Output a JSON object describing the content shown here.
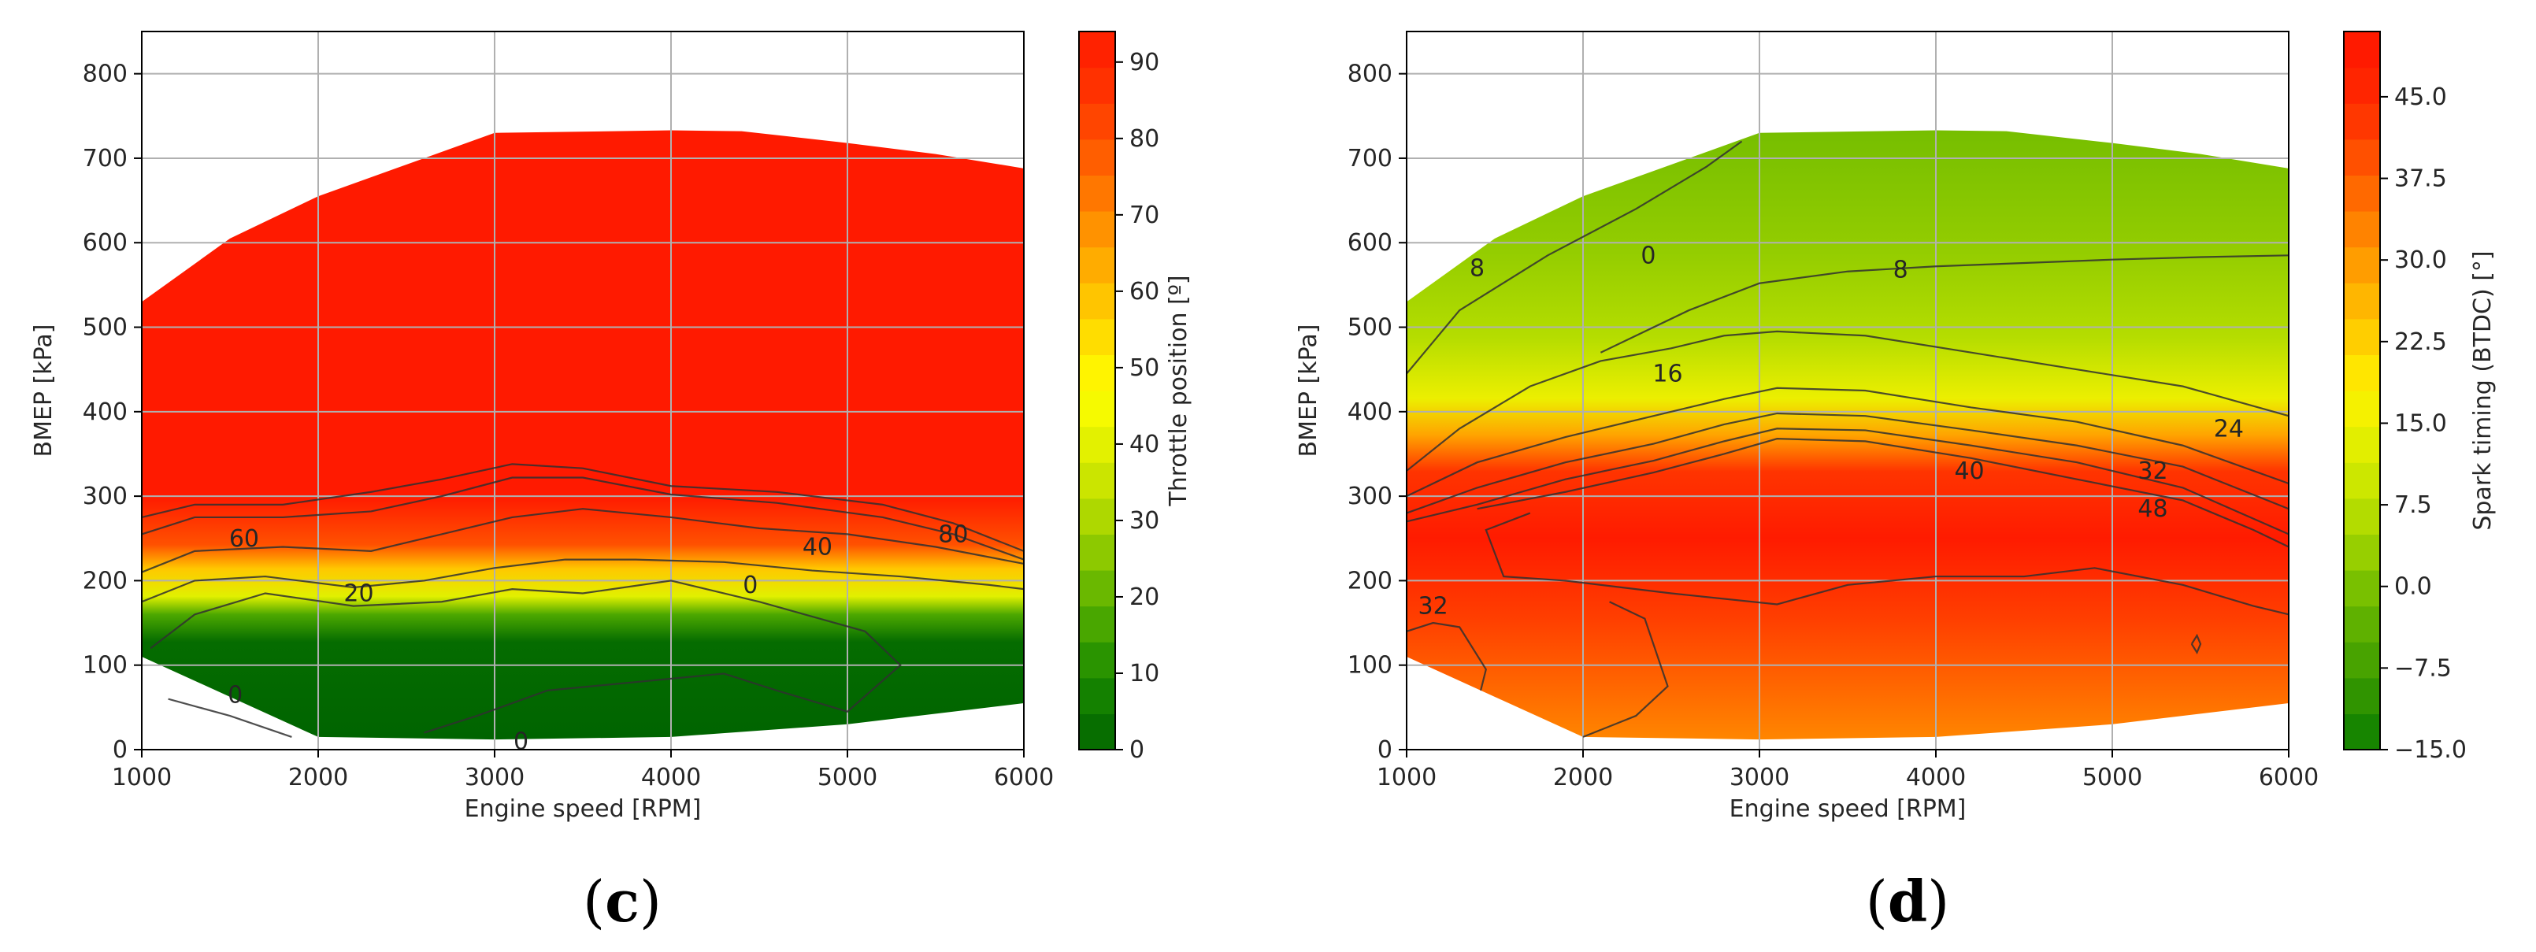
{
  "chart_data": [
    {
      "type": "heatmap",
      "panel": "c",
      "panel_label_prefix": "(",
      "panel_label_suffix": ")",
      "xlabel": "Engine speed [RPM]",
      "ylabel": "BMEP [kPa]",
      "xlim": [
        1000,
        6000
      ],
      "ylim": [
        0,
        850
      ],
      "xticks": [
        1000,
        2000,
        3000,
        4000,
        5000,
        6000
      ],
      "yticks": [
        0,
        100,
        200,
        300,
        400,
        500,
        600,
        700,
        800
      ],
      "grid": true,
      "colorbar": {
        "label": "Throttle position [º]",
        "range": [
          0,
          94
        ],
        "ticks": [
          "0",
          "10",
          "20",
          "30",
          "40",
          "50",
          "60",
          "70",
          "80",
          "90"
        ],
        "tick_values": [
          0,
          10,
          20,
          30,
          40,
          50,
          60,
          70,
          80,
          90
        ],
        "colors": [
          "#006400",
          "#1a8a00",
          "#58b000",
          "#9fd100",
          "#d9ec00",
          "#ffff00",
          "#ffd200",
          "#ff9f00",
          "#ff6a00",
          "#ff3800",
          "#ff1a00"
        ]
      },
      "envelope": [
        [
          1000,
          530
        ],
        [
          1500,
          605
        ],
        [
          2000,
          655
        ],
        [
          2600,
          700
        ],
        [
          3000,
          730
        ],
        [
          4000,
          733
        ],
        [
          4400,
          732
        ],
        [
          5000,
          718
        ],
        [
          5500,
          705
        ],
        [
          6000,
          688
        ],
        [
          6000,
          55
        ],
        [
          5000,
          30
        ],
        [
          4000,
          15
        ],
        [
          3000,
          12
        ],
        [
          2000,
          15
        ],
        [
          1000,
          110
        ]
      ],
      "contour_lines": [
        {
          "level": 0,
          "points": [
            [
              1050,
              120
            ],
            [
              1300,
              160
            ],
            [
              1700,
              185
            ],
            [
              2200,
              170
            ],
            [
              2700,
              175
            ],
            [
              3100,
              190
            ],
            [
              3500,
              185
            ],
            [
              4000,
              200
            ],
            [
              4500,
              175
            ],
            [
              5100,
              140
            ],
            [
              5300,
              100
            ],
            [
              5000,
              45
            ],
            [
              4600,
              70
            ],
            [
              4300,
              90
            ],
            [
              3800,
              80
            ],
            [
              3300,
              70
            ],
            [
              2900,
              40
            ],
            [
              2600,
              20
            ]
          ]
        },
        {
          "level": 0,
          "points": [
            [
              1150,
              60
            ],
            [
              1500,
              40
            ],
            [
              1850,
              15
            ]
          ]
        },
        {
          "level": 20,
          "points": [
            [
              1000,
              175
            ],
            [
              1300,
              200
            ],
            [
              1700,
              205
            ],
            [
              2200,
              192
            ],
            [
              2600,
              200
            ],
            [
              3000,
              215
            ],
            [
              3400,
              225
            ],
            [
              3800,
              225
            ],
            [
              4300,
              222
            ],
            [
              4800,
              212
            ],
            [
              5300,
              205
            ],
            [
              5800,
              195
            ],
            [
              6000,
              190
            ]
          ]
        },
        {
          "level": 40,
          "points": [
            [
              1000,
              210
            ],
            [
              1300,
              235
            ],
            [
              1800,
              240
            ],
            [
              2300,
              235
            ],
            [
              2700,
              255
            ],
            [
              3100,
              275
            ],
            [
              3500,
              285
            ],
            [
              4000,
              275
            ],
            [
              4500,
              262
            ],
            [
              5000,
              255
            ],
            [
              5500,
              240
            ],
            [
              6000,
              220
            ]
          ]
        },
        {
          "level": 60,
          "points": [
            [
              1000,
              255
            ],
            [
              1300,
              275
            ],
            [
              1800,
              275
            ],
            [
              2300,
              282
            ],
            [
              2700,
              300
            ],
            [
              3100,
              322
            ],
            [
              3500,
              322
            ],
            [
              4000,
              302
            ],
            [
              4600,
              292
            ],
            [
              5200,
              275
            ],
            [
              5600,
              255
            ],
            [
              6000,
              225
            ]
          ]
        },
        {
          "level": 80,
          "points": [
            [
              1000,
              275
            ],
            [
              1300,
              290
            ],
            [
              1800,
              290
            ],
            [
              2300,
              305
            ],
            [
              2700,
              320
            ],
            [
              3100,
              338
            ],
            [
              3500,
              333
            ],
            [
              4000,
              312
            ],
            [
              4600,
              305
            ],
            [
              5200,
              290
            ],
            [
              5600,
              268
            ],
            [
              6000,
              235
            ]
          ]
        }
      ],
      "contour_labels": [
        {
          "text": "60",
          "x": 1580,
          "y": 250
        },
        {
          "text": "20",
          "x": 2230,
          "y": 185
        },
        {
          "text": "40",
          "x": 4830,
          "y": 240
        },
        {
          "text": "80",
          "x": 5600,
          "y": 255
        },
        {
          "text": "0",
          "x": 4450,
          "y": 195
        },
        {
          "text": "0",
          "x": 1530,
          "y": 65
        },
        {
          "text": "0",
          "x": 3150,
          "y": 10
        }
      ]
    },
    {
      "type": "heatmap",
      "panel": "d",
      "panel_label_prefix": "(",
      "panel_label_suffix": ")",
      "xlabel": "Engine speed [RPM]",
      "ylabel": "BMEP [kPa]",
      "xlim": [
        1000,
        6000
      ],
      "ylim": [
        0,
        850
      ],
      "xticks": [
        1000,
        2000,
        3000,
        4000,
        5000,
        6000
      ],
      "yticks": [
        0,
        100,
        200,
        300,
        400,
        500,
        600,
        700,
        800
      ],
      "grid": true,
      "colorbar": {
        "label": "Spark timing (BTDC) [°]",
        "range": [
          -15,
          51
        ],
        "ticks": [
          "−15.0",
          "−7.5",
          "0.0",
          "7.5",
          "15.0",
          "22.5",
          "30.0",
          "37.5",
          "45.0"
        ],
        "tick_values": [
          -15,
          -7.5,
          0,
          7.5,
          15,
          22.5,
          30,
          37.5,
          45
        ],
        "colors": [
          "#0a7d00",
          "#3c9c00",
          "#6ab800",
          "#a6d600",
          "#d8ec00",
          "#fff200",
          "#ffc200",
          "#ff9000",
          "#ff5c00",
          "#ff2a00",
          "#ff1500"
        ]
      },
      "envelope": [
        [
          1000,
          530
        ],
        [
          1500,
          605
        ],
        [
          2000,
          655
        ],
        [
          2600,
          700
        ],
        [
          3000,
          730
        ],
        [
          4000,
          733
        ],
        [
          4400,
          732
        ],
        [
          5000,
          718
        ],
        [
          5500,
          705
        ],
        [
          6000,
          688
        ],
        [
          6000,
          55
        ],
        [
          5000,
          30
        ],
        [
          4000,
          15
        ],
        [
          3000,
          12
        ],
        [
          2000,
          15
        ],
        [
          1000,
          110
        ]
      ],
      "contour_lines": [
        {
          "level": 0,
          "points": [
            [
              1000,
              445
            ],
            [
              1300,
              520
            ],
            [
              1800,
              585
            ],
            [
              2300,
              640
            ],
            [
              2700,
              690
            ],
            [
              2900,
              720
            ]
          ]
        },
        {
          "level": 8,
          "points": [
            [
              2100,
              470
            ],
            [
              2600,
              520
            ],
            [
              3000,
              552
            ],
            [
              3500,
              566
            ],
            [
              4000,
              572
            ],
            [
              4500,
              576
            ],
            [
              5000,
              580
            ],
            [
              5500,
              583
            ],
            [
              6000,
              585
            ]
          ]
        },
        {
          "level": 16,
          "points": [
            [
              1000,
              330
            ],
            [
              1300,
              380
            ],
            [
              1700,
              430
            ],
            [
              2100,
              460
            ],
            [
              2500,
              475
            ],
            [
              2800,
              490
            ],
            [
              3100,
              495
            ],
            [
              3600,
              490
            ],
            [
              4200,
              470
            ],
            [
              4800,
              450
            ],
            [
              5400,
              430
            ],
            [
              6000,
              395
            ]
          ]
        },
        {
          "level": 24,
          "points": [
            [
              1000,
              300
            ],
            [
              1400,
              340
            ],
            [
              1900,
              370
            ],
            [
              2400,
              395
            ],
            [
              2800,
              415
            ],
            [
              3100,
              428
            ],
            [
              3600,
              425
            ],
            [
              4200,
              405
            ],
            [
              4800,
              388
            ],
            [
              5400,
              360
            ],
            [
              6000,
              315
            ]
          ]
        },
        {
          "level": 32,
          "points": [
            [
              1000,
              280
            ],
            [
              1400,
              310
            ],
            [
              1900,
              340
            ],
            [
              2400,
              362
            ],
            [
              2800,
              385
            ],
            [
              3100,
              398
            ],
            [
              3600,
              395
            ],
            [
              4200,
              378
            ],
            [
              4800,
              360
            ],
            [
              5400,
              335
            ],
            [
              6000,
              285
            ]
          ]
        },
        {
          "level": 40,
          "points": [
            [
              1000,
              270
            ],
            [
              1400,
              290
            ],
            [
              1900,
              320
            ],
            [
              2400,
              342
            ],
            [
              2800,
              365
            ],
            [
              3100,
              380
            ],
            [
              3600,
              378
            ],
            [
              4200,
              360
            ],
            [
              4800,
              340
            ],
            [
              5400,
              310
            ],
            [
              6000,
              255
            ]
          ]
        },
        {
          "level": 48,
          "points": [
            [
              1400,
              285
            ],
            [
              1900,
              305
            ],
            [
              2400,
              328
            ],
            [
              2800,
              350
            ],
            [
              3100,
              368
            ],
            [
              3600,
              365
            ],
            [
              4200,
              345
            ],
            [
              4800,
              320
            ],
            [
              5400,
              295
            ],
            [
              5800,
              260
            ],
            [
              6000,
              240
            ]
          ]
        },
        {
          "level": 48,
          "points": [
            [
              1700,
              280
            ],
            [
              1450,
              260
            ],
            [
              1550,
              205
            ],
            [
              1900,
              200
            ],
            [
              2500,
              185
            ],
            [
              3100,
              172
            ],
            [
              3500,
              195
            ],
            [
              4000,
              205
            ],
            [
              4500,
              205
            ],
            [
              4900,
              215
            ],
            [
              5400,
              195
            ],
            [
              5800,
              170
            ],
            [
              6000,
              160
            ]
          ]
        },
        {
          "level": 32,
          "points": [
            [
              1000,
              140
            ],
            [
              1150,
              150
            ],
            [
              1300,
              145
            ],
            [
              1450,
              95
            ],
            [
              1420,
              70
            ]
          ]
        },
        {
          "level": 32,
          "points": [
            [
              2000,
              15
            ],
            [
              2300,
              40
            ],
            [
              2480,
              75
            ],
            [
              2350,
              155
            ],
            [
              2150,
              175
            ]
          ]
        },
        {
          "level": 40,
          "points": [
            [
              5450,
              125
            ],
            [
              5480,
              115
            ],
            [
              5500,
              125
            ],
            [
              5480,
              135
            ],
            [
              5450,
              125
            ]
          ]
        }
      ],
      "contour_labels": [
        {
          "text": "8",
          "x": 1400,
          "y": 570
        },
        {
          "text": "0",
          "x": 2370,
          "y": 585
        },
        {
          "text": "8",
          "x": 3800,
          "y": 568
        },
        {
          "text": "16",
          "x": 2480,
          "y": 445
        },
        {
          "text": "24",
          "x": 5660,
          "y": 380
        },
        {
          "text": "32",
          "x": 5230,
          "y": 330
        },
        {
          "text": "40",
          "x": 4190,
          "y": 330
        },
        {
          "text": "48",
          "x": 5230,
          "y": 285
        },
        {
          "text": "32",
          "x": 1150,
          "y": 170
        }
      ]
    }
  ]
}
